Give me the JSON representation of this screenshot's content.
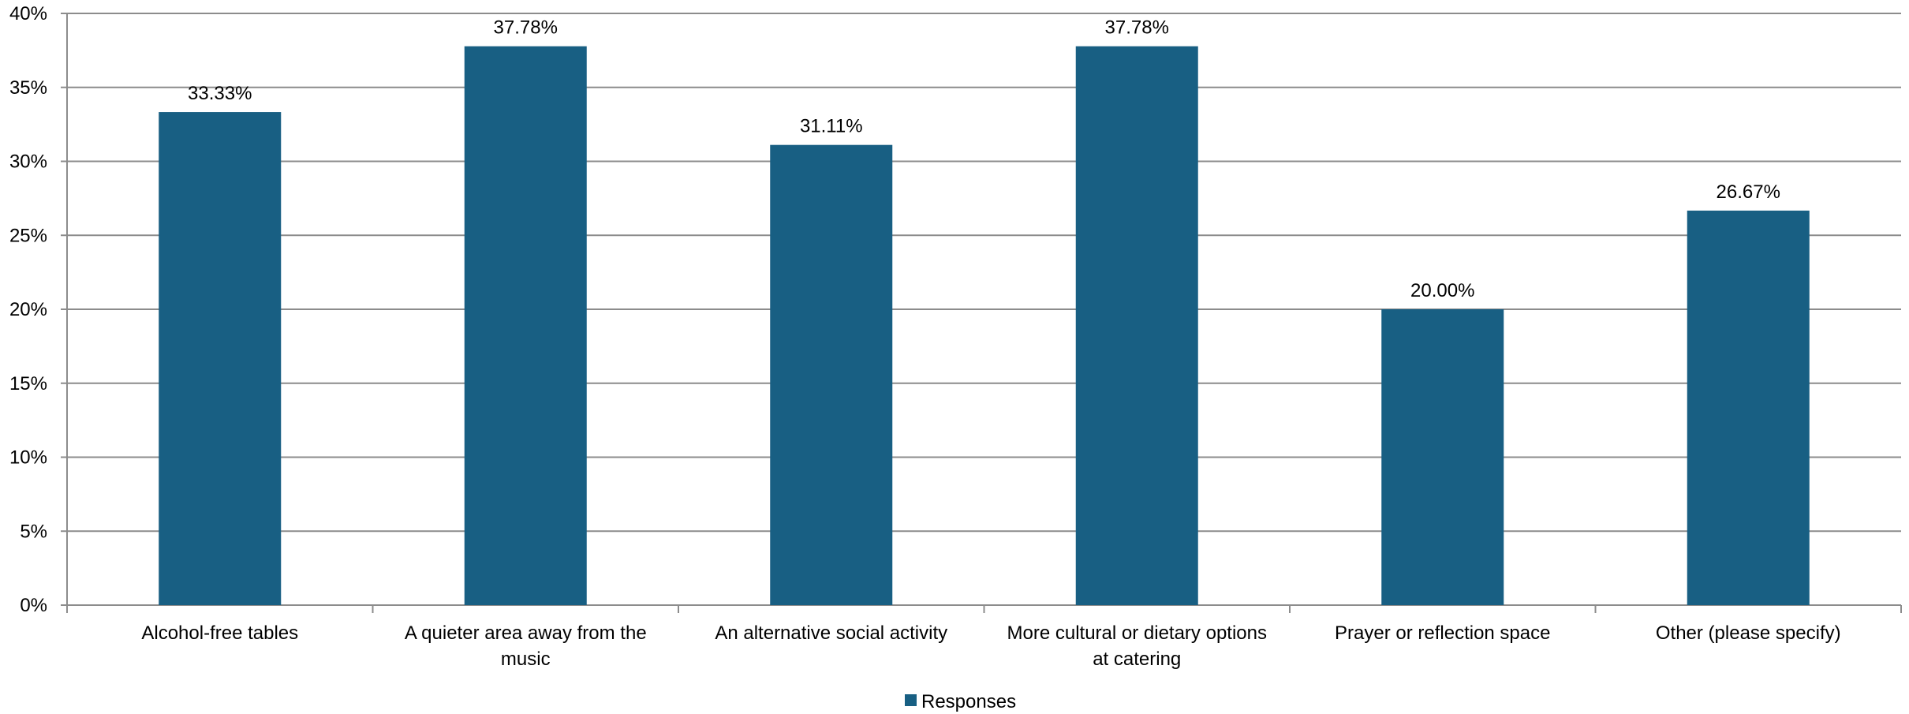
{
  "chart_data": {
    "type": "bar",
    "categories": [
      [
        "Alcohol-free tables"
      ],
      [
        "A quieter area away from the",
        "music"
      ],
      [
        "An alternative social activity"
      ],
      [
        "More cultural or dietary options",
        "at catering"
      ],
      [
        "Prayer or reflection space"
      ],
      [
        "Other (please specify)"
      ]
    ],
    "series": [
      {
        "name": "Responses",
        "values": [
          33.33,
          37.78,
          31.11,
          37.78,
          20.0,
          26.67
        ],
        "data_labels": [
          "33.33%",
          "37.78%",
          "31.11%",
          "37.78%",
          "20.00%",
          "26.67%"
        ],
        "color": "#185f83"
      }
    ],
    "ylim": [
      0,
      40
    ],
    "y_ticks": [
      0,
      5,
      10,
      15,
      20,
      25,
      30,
      35,
      40
    ],
    "y_tick_labels": [
      "0%",
      "5%",
      "10%",
      "15%",
      "20%",
      "25%",
      "30%",
      "35%",
      "40%"
    ],
    "grid": true,
    "grid_color": "#8c8c8c",
    "legend_position": "bottom-center",
    "title": "",
    "xlabel": "",
    "ylabel": ""
  }
}
